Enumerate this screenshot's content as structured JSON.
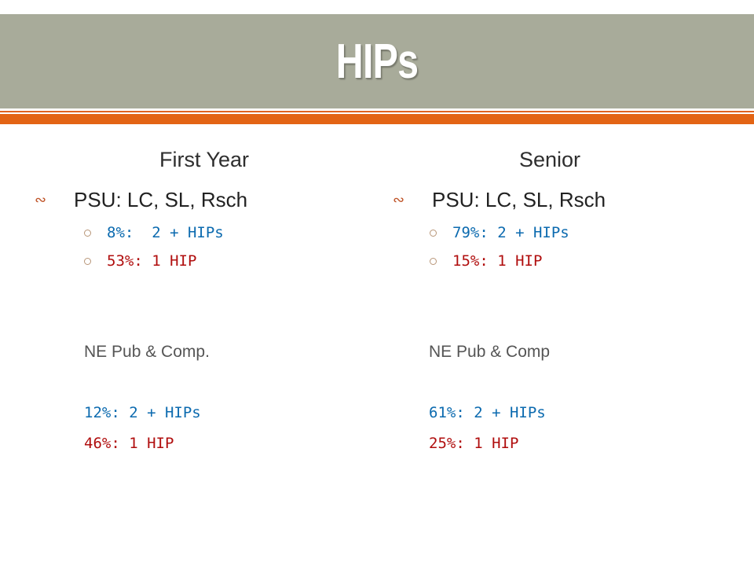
{
  "title": "HIPs",
  "columns": [
    {
      "heading": "First Year",
      "bullet": "PSU: LC, SL, Rsch",
      "sub_items": [
        "8%:  2 + HIPs",
        "53%: 1 HIP"
      ],
      "comparison_label": "NE Pub & Comp.",
      "comparison_items": [
        "12%: 2 + HIPs",
        "46%: 1 HIP"
      ]
    },
    {
      "heading": "Senior",
      "bullet": "PSU: LC, SL, Rsch",
      "sub_items": [
        "79%: 2 + HIPs",
        "15%: 1 HIP"
      ],
      "comparison_label": "NE Pub & Comp",
      "comparison_items": [
        "61%: 2 + HIPs",
        "25%: 1 HIP"
      ]
    }
  ],
  "colors": {
    "title_bar": "#a8ab9a",
    "accent": "#e36414",
    "blue_text": "#0b6aaf",
    "red_text": "#b00d0d"
  },
  "icons": {
    "bullet": "swirl-bullet-icon",
    "sub_bullet": "circle-bullet-icon"
  }
}
